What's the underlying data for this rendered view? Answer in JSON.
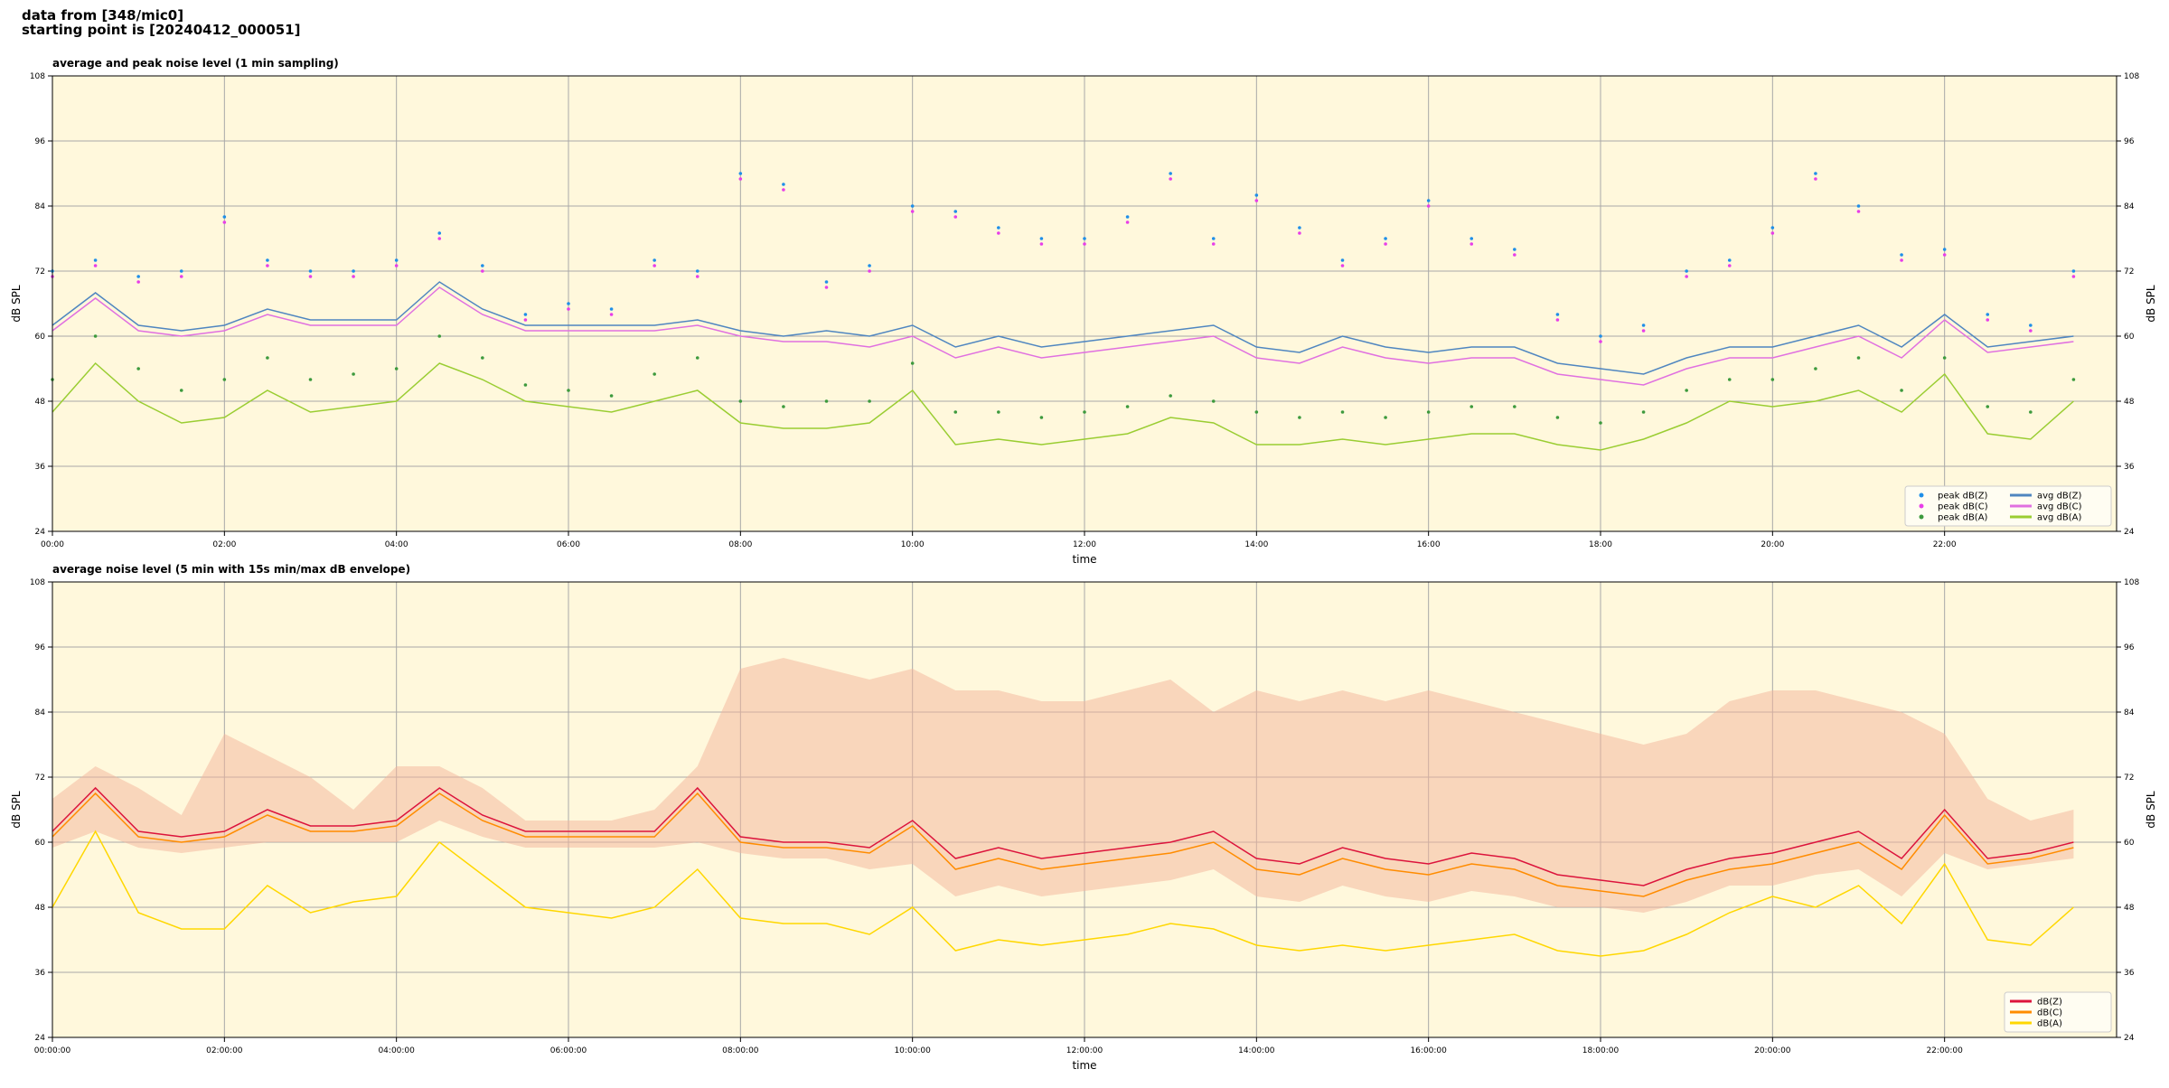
{
  "header": [
    "data from [348/mic0]",
    "starting point is [20240412_000051]"
  ],
  "chart_data": [
    {
      "type": "line",
      "title": "average and peak noise level (1 min sampling)",
      "xlabel": "time",
      "ylabel": "dB SPL",
      "xlim": [
        0,
        24
      ],
      "ylim": [
        24,
        108
      ],
      "grid": true,
      "legend": "lower right",
      "legend_columns": 2,
      "xticks": [
        {
          "value": 0,
          "label": "00:00"
        },
        {
          "value": 2,
          "label": "02:00"
        },
        {
          "value": 4,
          "label": "04:00"
        },
        {
          "value": 6,
          "label": "06:00"
        },
        {
          "value": 8,
          "label": "08:00"
        },
        {
          "value": 10,
          "label": "10:00"
        },
        {
          "value": 12,
          "label": "12:00"
        },
        {
          "value": 14,
          "label": "14:00"
        },
        {
          "value": 16,
          "label": "16:00"
        },
        {
          "value": 18,
          "label": "18:00"
        },
        {
          "value": 20,
          "label": "20:00"
        },
        {
          "value": 22,
          "label": "22:00"
        }
      ],
      "yticks": [
        24,
        36,
        48,
        60,
        72,
        84,
        96,
        108
      ],
      "x": [
        0,
        0.5,
        1,
        1.5,
        2,
        2.5,
        3,
        3.5,
        4,
        4.5,
        5,
        5.5,
        6,
        6.5,
        7,
        7.5,
        8,
        8.5,
        9,
        9.5,
        10,
        10.5,
        11,
        11.5,
        12,
        12.5,
        13,
        13.5,
        14,
        14.5,
        15,
        15.5,
        16,
        16.5,
        17,
        17.5,
        18,
        18.5,
        19,
        19.5,
        20,
        20.5,
        21,
        21.5,
        22,
        22.5,
        23,
        23.5
      ],
      "series": [
        {
          "name": "peak dB(Z)",
          "mode": "markers",
          "color": "#1f8fe8",
          "values": [
            72,
            74,
            71,
            72,
            82,
            74,
            72,
            72,
            74,
            79,
            73,
            64,
            66,
            65,
            74,
            72,
            90,
            88,
            70,
            73,
            84,
            83,
            80,
            78,
            78,
            82,
            90,
            78,
            86,
            80,
            74,
            78,
            85,
            78,
            76,
            64,
            60,
            62,
            72,
            74,
            80,
            90,
            84,
            75,
            76,
            64,
            62,
            72
          ]
        },
        {
          "name": "peak dB(C)",
          "mode": "markers",
          "color": "#e83ee8",
          "values": [
            71,
            73,
            70,
            71,
            81,
            73,
            71,
            71,
            73,
            78,
            72,
            63,
            65,
            64,
            73,
            71,
            89,
            87,
            69,
            72,
            83,
            82,
            79,
            77,
            77,
            81,
            89,
            77,
            85,
            79,
            73,
            77,
            84,
            77,
            75,
            63,
            59,
            61,
            71,
            73,
            79,
            89,
            83,
            74,
            75,
            63,
            61,
            71
          ]
        },
        {
          "name": "peak dB(A)",
          "mode": "markers",
          "color": "#3d9a3d",
          "values": [
            52,
            60,
            54,
            50,
            52,
            56,
            52,
            53,
            54,
            60,
            56,
            51,
            50,
            49,
            53,
            56,
            48,
            47,
            48,
            48,
            55,
            46,
            46,
            45,
            46,
            47,
            49,
            48,
            46,
            45,
            46,
            45,
            46,
            47,
            47,
            45,
            44,
            46,
            50,
            52,
            52,
            54,
            56,
            50,
            56,
            47,
            46,
            52
          ]
        },
        {
          "name": "avg dB(Z)",
          "mode": "lines",
          "color": "#4f86c0",
          "values": [
            62,
            68,
            62,
            61,
            62,
            65,
            63,
            63,
            63,
            70,
            65,
            62,
            62,
            62,
            62,
            63,
            61,
            60,
            61,
            60,
            62,
            58,
            60,
            58,
            59,
            60,
            61,
            62,
            58,
            57,
            60,
            58,
            57,
            58,
            58,
            55,
            54,
            53,
            56,
            58,
            58,
            60,
            62,
            58,
            64,
            58,
            59,
            60
          ]
        },
        {
          "name": "avg dB(C)",
          "mode": "lines",
          "color": "#e070e0",
          "values": [
            61,
            67,
            61,
            60,
            61,
            64,
            62,
            62,
            62,
            69,
            64,
            61,
            61,
            61,
            61,
            62,
            60,
            59,
            59,
            58,
            60,
            56,
            58,
            56,
            57,
            58,
            59,
            60,
            56,
            55,
            58,
            56,
            55,
            56,
            56,
            53,
            52,
            51,
            54,
            56,
            56,
            58,
            60,
            56,
            63,
            57,
            58,
            59
          ]
        },
        {
          "name": "avg dB(A)",
          "mode": "lines",
          "color": "#9acd32",
          "values": [
            46,
            55,
            48,
            44,
            45,
            50,
            46,
            47,
            48,
            55,
            52,
            48,
            47,
            46,
            48,
            50,
            44,
            43,
            43,
            44,
            50,
            40,
            41,
            40,
            41,
            42,
            45,
            44,
            40,
            40,
            41,
            40,
            41,
            42,
            42,
            40,
            39,
            41,
            44,
            48,
            47,
            48,
            50,
            46,
            53,
            42,
            41,
            48
          ]
        }
      ]
    },
    {
      "type": "line",
      "title": "average noise level (5 min with 15s min/max dB envelope)",
      "xlabel": "time",
      "ylabel": "dB SPL",
      "xlim": [
        0,
        24
      ],
      "ylim": [
        24,
        108
      ],
      "grid": true,
      "legend": "lower right",
      "legend_columns": 1,
      "xticks": [
        {
          "value": 0,
          "label": "00:00:00"
        },
        {
          "value": 2,
          "label": "02:00:00"
        },
        {
          "value": 4,
          "label": "04:00:00"
        },
        {
          "value": 6,
          "label": "06:00:00"
        },
        {
          "value": 8,
          "label": "08:00:00"
        },
        {
          "value": 10,
          "label": "10:00:00"
        },
        {
          "value": 12,
          "label": "12:00:00"
        },
        {
          "value": 14,
          "label": "14:00:00"
        },
        {
          "value": 16,
          "label": "16:00:00"
        },
        {
          "value": 18,
          "label": "18:00:00"
        },
        {
          "value": 20,
          "label": "20:00:00"
        },
        {
          "value": 22,
          "label": "22:00:00"
        }
      ],
      "yticks": [
        24,
        36,
        48,
        60,
        72,
        84,
        96,
        108
      ],
      "x": [
        0,
        0.5,
        1,
        1.5,
        2,
        2.5,
        3,
        3.5,
        4,
        4.5,
        5,
        5.5,
        6,
        6.5,
        7,
        7.5,
        8,
        8.5,
        9,
        9.5,
        10,
        10.5,
        11,
        11.5,
        12,
        12.5,
        13,
        13.5,
        14,
        14.5,
        15,
        15.5,
        16,
        16.5,
        17,
        17.5,
        18,
        18.5,
        19,
        19.5,
        20,
        20.5,
        21,
        21.5,
        22,
        22.5,
        23,
        23.5
      ],
      "envelope": {
        "color": "#f4b49a",
        "max": [
          68,
          74,
          70,
          65,
          80,
          76,
          72,
          66,
          74,
          74,
          70,
          64,
          64,
          64,
          66,
          74,
          92,
          94,
          92,
          90,
          92,
          88,
          88,
          86,
          86,
          88,
          90,
          84,
          88,
          86,
          88,
          86,
          88,
          86,
          84,
          82,
          80,
          78,
          80,
          86,
          88,
          88,
          86,
          84,
          80,
          68,
          64,
          66
        ],
        "min": [
          59,
          62,
          59,
          58,
          59,
          60,
          60,
          60,
          60,
          64,
          61,
          59,
          59,
          59,
          59,
          60,
          58,
          57,
          57,
          55,
          56,
          50,
          52,
          50,
          51,
          52,
          53,
          55,
          50,
          49,
          52,
          50,
          49,
          51,
          50,
          48,
          48,
          47,
          49,
          52,
          52,
          54,
          55,
          50,
          58,
          55,
          56,
          57
        ]
      },
      "series": [
        {
          "name": "dB(Z)",
          "mode": "lines",
          "color": "#dc143c",
          "values": [
            62,
            70,
            62,
            61,
            62,
            66,
            63,
            63,
            64,
            70,
            65,
            62,
            62,
            62,
            62,
            70,
            61,
            60,
            60,
            59,
            64,
            57,
            59,
            57,
            58,
            59,
            60,
            62,
            57,
            56,
            59,
            57,
            56,
            58,
            57,
            54,
            53,
            52,
            55,
            57,
            58,
            60,
            62,
            57,
            66,
            57,
            58,
            60
          ]
        },
        {
          "name": "dB(C)",
          "mode": "lines",
          "color": "#ff8c00",
          "values": [
            61,
            69,
            61,
            60,
            61,
            65,
            62,
            62,
            63,
            69,
            64,
            61,
            61,
            61,
            61,
            69,
            60,
            59,
            59,
            58,
            63,
            55,
            57,
            55,
            56,
            57,
            58,
            60,
            55,
            54,
            57,
            55,
            54,
            56,
            55,
            52,
            51,
            50,
            53,
            55,
            56,
            58,
            60,
            55,
            65,
            56,
            57,
            59
          ]
        },
        {
          "name": "dB(A)",
          "mode": "lines",
          "color": "#ffd700",
          "values": [
            48,
            62,
            47,
            44,
            44,
            52,
            47,
            49,
            50,
            60,
            54,
            48,
            47,
            46,
            48,
            55,
            46,
            45,
            45,
            43,
            48,
            40,
            42,
            41,
            42,
            43,
            45,
            44,
            41,
            40,
            41,
            40,
            41,
            42,
            43,
            40,
            39,
            40,
            43,
            47,
            50,
            48,
            52,
            45,
            56,
            42,
            41,
            48
          ]
        }
      ]
    }
  ]
}
